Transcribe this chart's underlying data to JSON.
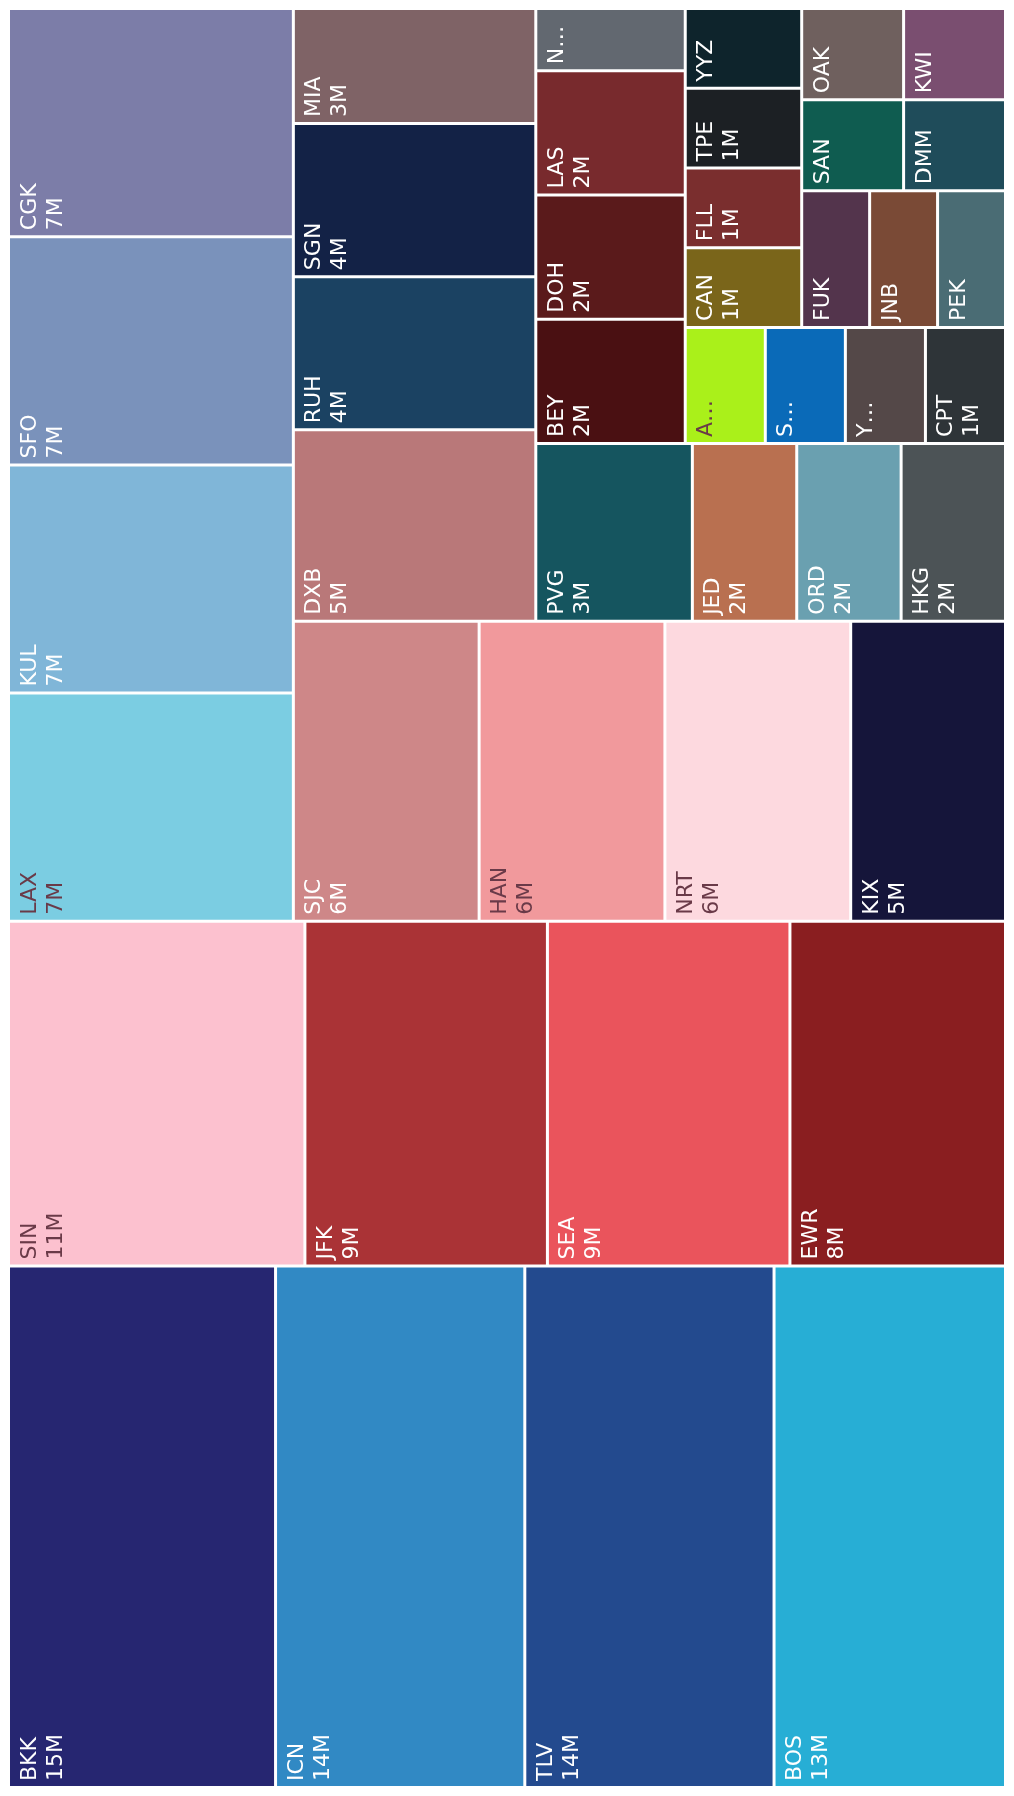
{
  "chart_data": {
    "type": "other",
    "categories": [
      "BKK",
      "TLV",
      "ICN",
      "BOS",
      "SIN",
      "SEA",
      "JFK",
      "EWR",
      "CGK",
      "SFO",
      "KUL",
      "LAX",
      "NRT",
      "HAN",
      "SJC",
      "DXB",
      "KIX",
      "SGN",
      "RUH",
      "PVG",
      "MIA",
      "LAS",
      "DOH",
      "BEY",
      "HKG",
      "ORD",
      "JED",
      "KWI",
      "DMM",
      "OAK",
      "SAN",
      "PEK",
      "JNB",
      "FUK",
      "YYZ",
      "TPE",
      "FLL",
      "CAN",
      "CPT",
      "Y…",
      "S…",
      "A…",
      "N…"
    ],
    "values": [
      15,
      14,
      14,
      13,
      11,
      9,
      9,
      8,
      7,
      7,
      7,
      7,
      6,
      6,
      6,
      5,
      5,
      4,
      4,
      3,
      3,
      2,
      2,
      2,
      2,
      2,
      2,
      null,
      null,
      null,
      null,
      null,
      null,
      null,
      null,
      1,
      1,
      1,
      1,
      null,
      null,
      null,
      null
    ],
    "value_labels": [
      "15M",
      "14M",
      "14M",
      "13M",
      "11M",
      "9M",
      "9M",
      "8M",
      "7M",
      "7M",
      "7M",
      "7M",
      "6M",
      "6M",
      "6M",
      "5M",
      "5M",
      "4M",
      "4M",
      "3M",
      "3M",
      "2M",
      "2M",
      "2M",
      "2M",
      "2M",
      "2M",
      null,
      null,
      null,
      null,
      null,
      null,
      null,
      null,
      "1M",
      "1M",
      "1M",
      "1M",
      null,
      null,
      null,
      null
    ],
    "colors": [
      "#262671",
      "#234a8e",
      "#3189c4",
      "#27aed5",
      "#fcc1cf",
      "#ea545c",
      "#aa3336",
      "#8a1e20",
      "#7c7da8",
      "#7a92bb",
      "#80b6d8",
      "#7bcde2",
      "#fdd9df",
      "#f1999c",
      "#ce8788",
      "#b97879",
      "#15153a",
      "#132246",
      "#1b4262",
      "#15555f",
      "#7f6366",
      "#782a2d",
      "#5a1a1b",
      "#4a1012",
      "#4c5356",
      "#6aa0b0",
      "#b97050",
      "#7a4e70",
      "#1f4c5a",
      "#6f605e",
      "#0f5c50",
      "#4a6c74",
      "#7a4a36",
      "#53344c",
      "#0e242c",
      "#1c2024",
      "#7a2e2e",
      "#7a651a",
      "#2e3438",
      "#544848",
      "#0a6ab8",
      "#aaf01a",
      "#626870"
    ]
  }
}
